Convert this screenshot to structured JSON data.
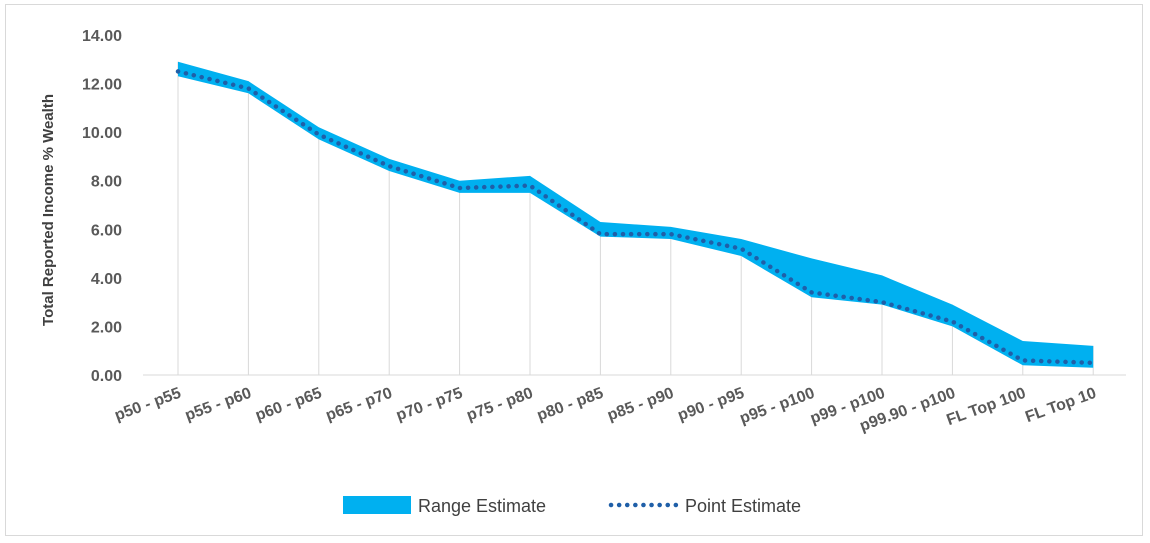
{
  "chart_data": {
    "type": "area",
    "categories": [
      "p50 - p55",
      "p55 - p60",
      "p60 - p65",
      "p65 - p70",
      "p70 - p75",
      "p75 - p80",
      "p80 - p85",
      "p85 - p90",
      "p90 - p95",
      "p95 - p100",
      "p99 - p100",
      "p99.90 - p100",
      "FL Top 100",
      "FL Top 10"
    ],
    "series": [
      {
        "name": "Range Estimate",
        "kind": "band",
        "color": "#00b0f0",
        "low": [
          12.3,
          11.6,
          9.7,
          8.4,
          7.5,
          7.5,
          5.7,
          5.6,
          4.9,
          3.2,
          2.9,
          2.0,
          0.4,
          0.3
        ],
        "high": [
          12.9,
          12.1,
          10.2,
          8.9,
          8.0,
          8.2,
          6.3,
          6.1,
          5.6,
          4.8,
          4.1,
          2.9,
          1.4,
          1.2
        ]
      },
      {
        "name": "Point Estimate",
        "kind": "dotted-line",
        "color": "#1f5fa8",
        "values": [
          12.5,
          11.8,
          9.9,
          8.6,
          7.7,
          7.8,
          5.8,
          5.8,
          5.2,
          3.4,
          3.0,
          2.2,
          0.6,
          0.5
        ]
      }
    ],
    "ylabel": "Total Reported Income % Wealth",
    "xlabel": "",
    "ylim": [
      0,
      14
    ],
    "yticks": [
      "0.00",
      "2.00",
      "4.00",
      "6.00",
      "8.00",
      "10.00",
      "12.00",
      "14.00"
    ],
    "grid": "vertical drop lines",
    "legend_position": "bottom"
  }
}
